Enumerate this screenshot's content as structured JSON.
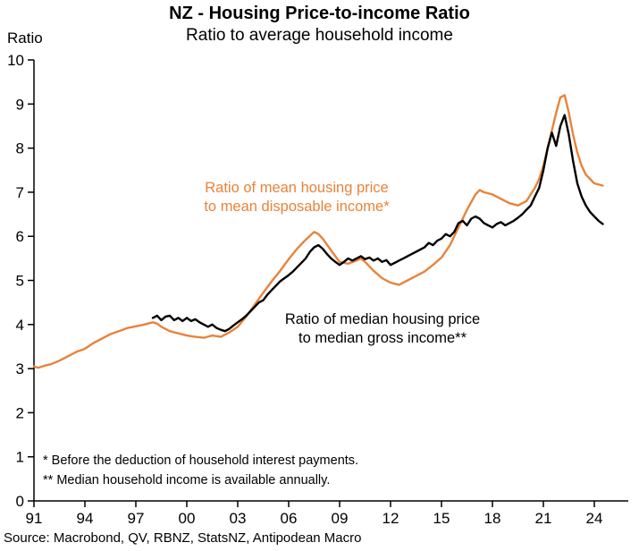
{
  "chart_data": {
    "type": "line",
    "title": "NZ - Housing Price-to-income Ratio",
    "subtitle": "Ratio to average household income",
    "ylabel": "Ratio",
    "xlabel": "",
    "ylim": [
      0,
      10
    ],
    "xlim": [
      1991,
      2025
    ],
    "grid": false,
    "legend_position": "inline-annotations",
    "y_ticks": [
      0,
      1,
      2,
      3,
      4,
      5,
      6,
      7,
      8,
      9,
      10
    ],
    "x_tick_years": [
      1991,
      1994,
      1997,
      2000,
      2003,
      2006,
      2009,
      2012,
      2015,
      2018,
      2021,
      2024
    ],
    "x_tick_labels": [
      "91",
      "94",
      "97",
      "00",
      "03",
      "06",
      "09",
      "12",
      "15",
      "18",
      "21",
      "24"
    ],
    "annotations": {
      "mean_series_label_line1": "Ratio of mean housing price",
      "mean_series_label_line2": "to mean disposable income*",
      "median_series_label_line1": "Ratio of median housing price",
      "median_series_label_line2": "to median gross income**",
      "footnote1": "* Before the deduction of household interest payments.",
      "footnote2": "** Median household income is available annually."
    },
    "source": "Source: Macrobond, QV, RBNZ, StatsNZ, Antipodean Macro",
    "series": [
      {
        "name": "Ratio of mean housing price to mean disposable income*",
        "color": "#E8833A",
        "points": [
          [
            1991.0,
            3.05
          ],
          [
            1991.25,
            3.02
          ],
          [
            1991.5,
            3.05
          ],
          [
            1991.75,
            3.08
          ],
          [
            1992.0,
            3.1
          ],
          [
            1992.5,
            3.18
          ],
          [
            1993.0,
            3.28
          ],
          [
            1993.5,
            3.38
          ],
          [
            1994.0,
            3.45
          ],
          [
            1994.5,
            3.58
          ],
          [
            1995.0,
            3.68
          ],
          [
            1995.5,
            3.78
          ],
          [
            1996.0,
            3.85
          ],
          [
            1996.5,
            3.92
          ],
          [
            1997.0,
            3.96
          ],
          [
            1997.5,
            4.0
          ],
          [
            1998.0,
            4.05
          ],
          [
            1998.25,
            4.02
          ],
          [
            1998.5,
            3.95
          ],
          [
            1999.0,
            3.85
          ],
          [
            1999.5,
            3.8
          ],
          [
            2000.0,
            3.75
          ],
          [
            2000.5,
            3.72
          ],
          [
            2001.0,
            3.7
          ],
          [
            2001.5,
            3.75
          ],
          [
            2002.0,
            3.72
          ],
          [
            2002.5,
            3.82
          ],
          [
            2003.0,
            3.95
          ],
          [
            2003.5,
            4.18
          ],
          [
            2004.0,
            4.45
          ],
          [
            2004.5,
            4.72
          ],
          [
            2005.0,
            4.98
          ],
          [
            2005.5,
            5.22
          ],
          [
            2006.0,
            5.48
          ],
          [
            2006.5,
            5.72
          ],
          [
            2007.0,
            5.92
          ],
          [
            2007.5,
            6.1
          ],
          [
            2007.75,
            6.05
          ],
          [
            2008.0,
            5.95
          ],
          [
            2008.5,
            5.68
          ],
          [
            2009.0,
            5.42
          ],
          [
            2009.5,
            5.38
          ],
          [
            2010.0,
            5.45
          ],
          [
            2010.25,
            5.5
          ],
          [
            2010.5,
            5.42
          ],
          [
            2011.0,
            5.22
          ],
          [
            2011.5,
            5.05
          ],
          [
            2012.0,
            4.95
          ],
          [
            2012.5,
            4.9
          ],
          [
            2013.0,
            5.0
          ],
          [
            2013.5,
            5.1
          ],
          [
            2014.0,
            5.2
          ],
          [
            2014.5,
            5.35
          ],
          [
            2015.0,
            5.52
          ],
          [
            2015.5,
            5.8
          ],
          [
            2016.0,
            6.2
          ],
          [
            2016.5,
            6.6
          ],
          [
            2017.0,
            6.95
          ],
          [
            2017.25,
            7.05
          ],
          [
            2017.5,
            7.0
          ],
          [
            2018.0,
            6.95
          ],
          [
            2018.5,
            6.85
          ],
          [
            2019.0,
            6.75
          ],
          [
            2019.5,
            6.7
          ],
          [
            2020.0,
            6.8
          ],
          [
            2020.5,
            7.1
          ],
          [
            2020.75,
            7.3
          ],
          [
            2021.0,
            7.6
          ],
          [
            2021.25,
            8.0
          ],
          [
            2021.5,
            8.4
          ],
          [
            2021.75,
            8.8
          ],
          [
            2022.0,
            9.15
          ],
          [
            2022.25,
            9.2
          ],
          [
            2022.5,
            8.8
          ],
          [
            2022.75,
            8.3
          ],
          [
            2023.0,
            7.9
          ],
          [
            2023.25,
            7.6
          ],
          [
            2023.5,
            7.4
          ],
          [
            2023.75,
            7.3
          ],
          [
            2024.0,
            7.2
          ],
          [
            2024.5,
            7.15
          ]
        ]
      },
      {
        "name": "Ratio of median housing price to median gross income**",
        "color": "#000000",
        "points": [
          [
            1998.0,
            4.15
          ],
          [
            1998.25,
            4.2
          ],
          [
            1998.5,
            4.1
          ],
          [
            1998.75,
            4.18
          ],
          [
            1999.0,
            4.2
          ],
          [
            1999.25,
            4.1
          ],
          [
            1999.5,
            4.15
          ],
          [
            1999.75,
            4.08
          ],
          [
            2000.0,
            4.15
          ],
          [
            2000.25,
            4.08
          ],
          [
            2000.5,
            4.12
          ],
          [
            2000.75,
            4.05
          ],
          [
            2001.0,
            4.0
          ],
          [
            2001.25,
            3.95
          ],
          [
            2001.5,
            4.0
          ],
          [
            2001.75,
            3.92
          ],
          [
            2002.0,
            3.88
          ],
          [
            2002.25,
            3.85
          ],
          [
            2002.5,
            3.9
          ],
          [
            2002.75,
            3.98
          ],
          [
            2003.0,
            4.05
          ],
          [
            2003.25,
            4.12
          ],
          [
            2003.5,
            4.2
          ],
          [
            2003.75,
            4.3
          ],
          [
            2004.0,
            4.4
          ],
          [
            2004.25,
            4.5
          ],
          [
            2004.5,
            4.55
          ],
          [
            2004.75,
            4.68
          ],
          [
            2005.0,
            4.78
          ],
          [
            2005.25,
            4.88
          ],
          [
            2005.5,
            4.98
          ],
          [
            2005.75,
            5.05
          ],
          [
            2006.0,
            5.12
          ],
          [
            2006.25,
            5.2
          ],
          [
            2006.5,
            5.3
          ],
          [
            2006.75,
            5.4
          ],
          [
            2007.0,
            5.5
          ],
          [
            2007.25,
            5.65
          ],
          [
            2007.5,
            5.75
          ],
          [
            2007.75,
            5.8
          ],
          [
            2008.0,
            5.72
          ],
          [
            2008.25,
            5.6
          ],
          [
            2008.5,
            5.5
          ],
          [
            2008.75,
            5.42
          ],
          [
            2009.0,
            5.35
          ],
          [
            2009.25,
            5.42
          ],
          [
            2009.5,
            5.5
          ],
          [
            2009.75,
            5.45
          ],
          [
            2010.0,
            5.5
          ],
          [
            2010.25,
            5.55
          ],
          [
            2010.5,
            5.48
          ],
          [
            2010.75,
            5.52
          ],
          [
            2011.0,
            5.45
          ],
          [
            2011.25,
            5.5
          ],
          [
            2011.5,
            5.42
          ],
          [
            2011.75,
            5.46
          ],
          [
            2012.0,
            5.35
          ],
          [
            2012.25,
            5.4
          ],
          [
            2012.5,
            5.45
          ],
          [
            2012.75,
            5.5
          ],
          [
            2013.0,
            5.55
          ],
          [
            2013.25,
            5.6
          ],
          [
            2013.5,
            5.65
          ],
          [
            2013.75,
            5.7
          ],
          [
            2014.0,
            5.75
          ],
          [
            2014.25,
            5.85
          ],
          [
            2014.5,
            5.8
          ],
          [
            2014.75,
            5.9
          ],
          [
            2015.0,
            5.95
          ],
          [
            2015.25,
            6.05
          ],
          [
            2015.5,
            6.0
          ],
          [
            2015.75,
            6.1
          ],
          [
            2016.0,
            6.3
          ],
          [
            2016.25,
            6.35
          ],
          [
            2016.5,
            6.25
          ],
          [
            2016.75,
            6.4
          ],
          [
            2017.0,
            6.45
          ],
          [
            2017.25,
            6.4
          ],
          [
            2017.5,
            6.3
          ],
          [
            2017.75,
            6.25
          ],
          [
            2018.0,
            6.2
          ],
          [
            2018.25,
            6.28
          ],
          [
            2018.5,
            6.32
          ],
          [
            2018.75,
            6.25
          ],
          [
            2019.0,
            6.3
          ],
          [
            2019.25,
            6.35
          ],
          [
            2019.5,
            6.42
          ],
          [
            2019.75,
            6.5
          ],
          [
            2020.0,
            6.6
          ],
          [
            2020.25,
            6.7
          ],
          [
            2020.5,
            6.9
          ],
          [
            2020.75,
            7.1
          ],
          [
            2021.0,
            7.5
          ],
          [
            2021.25,
            8.0
          ],
          [
            2021.5,
            8.35
          ],
          [
            2021.75,
            8.05
          ],
          [
            2022.0,
            8.5
          ],
          [
            2022.25,
            8.75
          ],
          [
            2022.5,
            8.3
          ],
          [
            2022.75,
            7.7
          ],
          [
            2023.0,
            7.2
          ],
          [
            2023.25,
            6.9
          ],
          [
            2023.5,
            6.7
          ],
          [
            2023.75,
            6.55
          ],
          [
            2024.0,
            6.45
          ],
          [
            2024.25,
            6.35
          ],
          [
            2024.5,
            6.28
          ]
        ]
      }
    ]
  }
}
